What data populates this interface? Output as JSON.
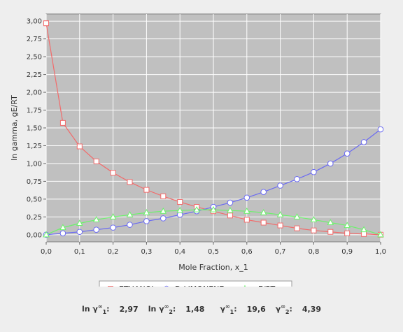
{
  "chart_data": {
    "type": "line",
    "title": "",
    "xlabel": "Mole Fraction, x_1",
    "ylabel": "ln gamma, gE/RT",
    "xlim": [
      0.0,
      1.0
    ],
    "ylim": [
      -0.1,
      3.1
    ],
    "x_ticks": [
      "0,0",
      "0,1",
      "0,2",
      "0,3",
      "0,4",
      "0,5",
      "0,6",
      "0,7",
      "0,8",
      "0,9",
      "1,0"
    ],
    "y_ticks": [
      "0,00",
      "0,25",
      "0,50",
      "0,75",
      "1,00",
      "1,25",
      "1,50",
      "1,75",
      "2,00",
      "2,25",
      "2,50",
      "2,75",
      "3,00"
    ],
    "grid": true,
    "legend_position": "bottom",
    "x": [
      0.0,
      0.05,
      0.1,
      0.15,
      0.2,
      0.25,
      0.3,
      0.35,
      0.4,
      0.45,
      0.5,
      0.55,
      0.6,
      0.65,
      0.7,
      0.75,
      0.8,
      0.85,
      0.9,
      0.95,
      1.0
    ],
    "series": [
      {
        "name": "ETHANOL",
        "marker": "square",
        "color": "#f26b6b",
        "values": [
          2.97,
          1.57,
          1.24,
          1.03,
          0.87,
          0.74,
          0.63,
          0.54,
          0.46,
          0.39,
          0.33,
          0.27,
          0.21,
          0.17,
          0.13,
          0.09,
          0.06,
          0.04,
          0.02,
          0.01,
          0.0
        ]
      },
      {
        "name": "D-LIMONENE",
        "marker": "circle",
        "color": "#6b6bf2",
        "values": [
          0.0,
          0.02,
          0.04,
          0.07,
          0.1,
          0.14,
          0.19,
          0.23,
          0.28,
          0.33,
          0.39,
          0.45,
          0.52,
          0.6,
          0.69,
          0.78,
          0.88,
          1.0,
          1.14,
          1.3,
          1.48
        ]
      },
      {
        "name": "gE/RT",
        "marker": "triangle",
        "color": "#6bf26b",
        "values": [
          0.0,
          0.1,
          0.16,
          0.21,
          0.25,
          0.28,
          0.31,
          0.33,
          0.34,
          0.35,
          0.35,
          0.34,
          0.33,
          0.31,
          0.28,
          0.25,
          0.21,
          0.17,
          0.13,
          0.07,
          0.0
        ]
      }
    ]
  },
  "colors": {
    "plot_background": "#c0c0c0",
    "grid": "#ffffff",
    "page_background": "#eeeeee"
  },
  "status": {
    "ln_gamma_label": "ln γ",
    "inf_sup": "∞",
    "sub1": "1",
    "sub2": "2",
    "ln_gamma1_value": "2,97",
    "ln_gamma2_value": "1,48",
    "gamma_label": "γ",
    "gamma1_value": "19,6",
    "gamma2_value": "4,39",
    "colon": ":"
  }
}
